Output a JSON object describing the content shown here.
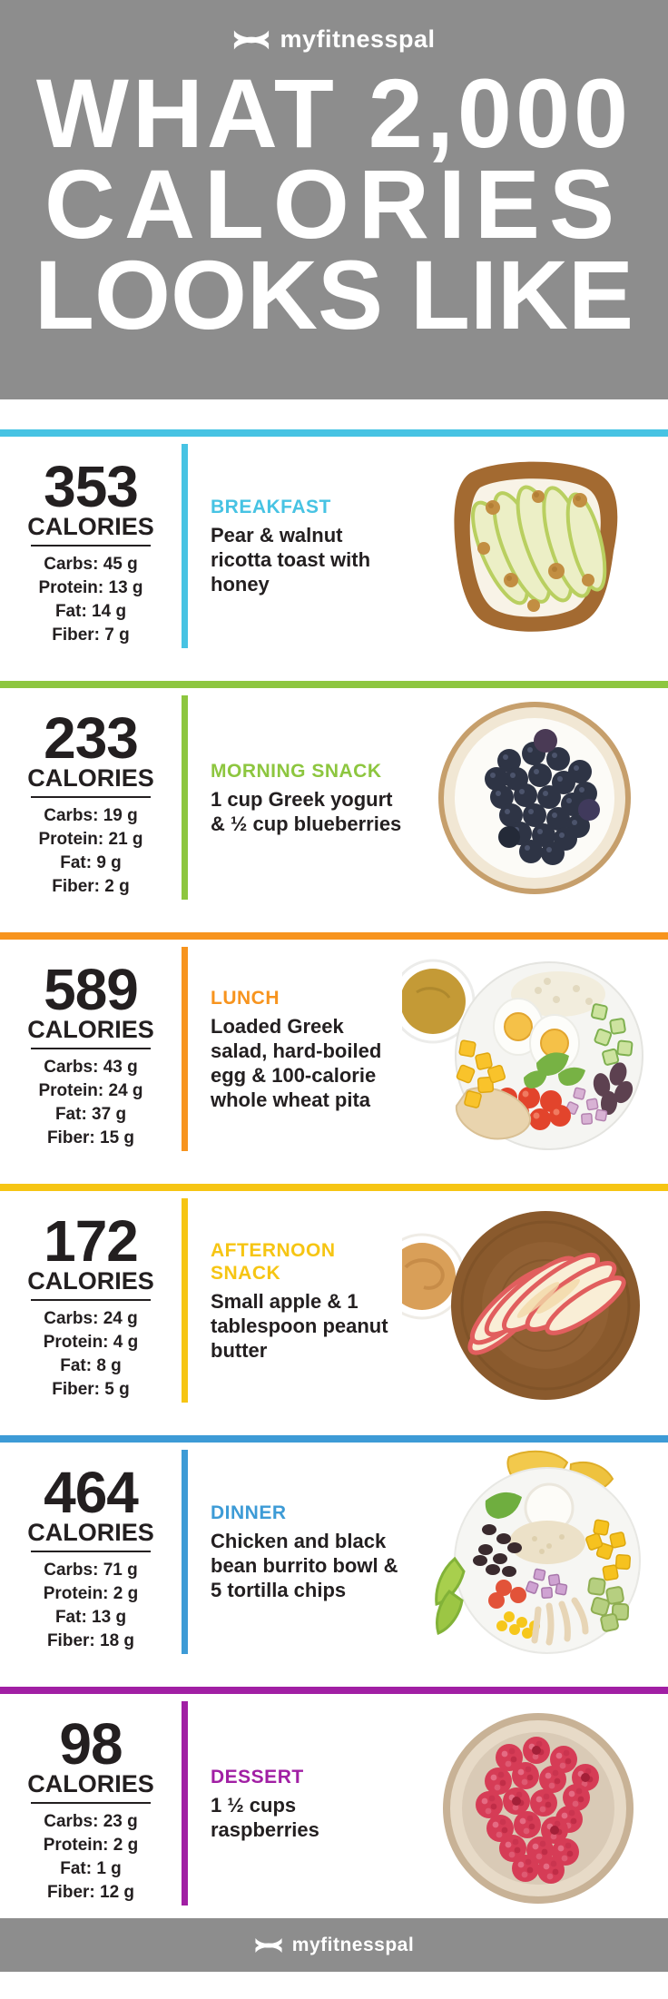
{
  "header": {
    "brand": "myfitnesspal",
    "title_line1": "WHAT 2,000",
    "title_line2": "CALORIES",
    "title_line3": "LOOKS LIKE"
  },
  "footer": {
    "brand": "myfitnesspal"
  },
  "colors": {
    "header_gray": "#8D8D8D",
    "text_black": "#231F20",
    "breakfast_cyan": "#47C3E3",
    "morning_snack_green": "#8DC63F",
    "lunch_orange": "#F7941E",
    "afternoon_snack_yellow": "#F6C513",
    "dinner_blue": "#3D9BD6",
    "dessert_purple": "#A11FA4"
  },
  "sections": [
    {
      "id": "breakfast",
      "accent": "#47C3E3",
      "calories": "353",
      "calories_label": "CALORIES",
      "stats": [
        "Carbs: 45 g",
        "Protein: 13 g",
        "Fat: 14 g",
        "Fiber: 7 g"
      ],
      "meal_label": "BREAKFAST",
      "description": "Pear & walnut ricotta toast with honey",
      "photo": "pear-walnut-ricotta-toast"
    },
    {
      "id": "morning-snack",
      "accent": "#8DC63F",
      "calories": "233",
      "calories_label": "CALORIES",
      "stats": [
        "Carbs: 19 g",
        "Protein: 21 g",
        "Fat: 9 g",
        "Fiber: 2 g"
      ],
      "meal_label": "MORNING SNACK",
      "description": "1 cup Greek yogurt & ½ cup blueberries",
      "photo": "greek-yogurt-blueberries-bowl"
    },
    {
      "id": "lunch",
      "accent": "#F7941E",
      "calories": "589",
      "calories_label": "CALORIES",
      "stats": [
        "Carbs: 43 g",
        "Protein: 24 g",
        "Fat: 37 g",
        "Fiber: 15 g"
      ],
      "meal_label": "LUNCH",
      "description": "Loaded Greek salad, hard-boiled egg & 100-calorie whole wheat pita",
      "photo": "loaded-greek-salad-bowl"
    },
    {
      "id": "afternoon-snack",
      "accent": "#F6C513",
      "calories": "172",
      "calories_label": "CALORIES",
      "stats": [
        "Carbs: 24 g",
        "Protein: 4 g",
        "Fat: 8 g",
        "Fiber: 5 g"
      ],
      "meal_label": "AFTERNOON SNACK",
      "description": "Small apple & 1 tablespoon peanut butter",
      "photo": "apple-slices-peanut-butter"
    },
    {
      "id": "dinner",
      "accent": "#3D9BD6",
      "calories": "464",
      "calories_label": "CALORIES",
      "stats": [
        "Carbs: 71 g",
        "Protein: 2 g",
        "Fat: 13 g",
        "Fiber: 18 g"
      ],
      "meal_label": "DINNER",
      "description": "Chicken and black bean burrito bowl & 5 tortilla chips",
      "photo": "chicken-burrito-bowl"
    },
    {
      "id": "dessert",
      "accent": "#A11FA4",
      "calories": "98",
      "calories_label": "CALORIES",
      "stats": [
        "Carbs: 23 g",
        "Protein: 2 g",
        "Fat: 1 g",
        "Fiber: 12 g"
      ],
      "meal_label": "DESSERT",
      "description": "1 ½ cups raspberries",
      "photo": "raspberries-bowl"
    }
  ]
}
